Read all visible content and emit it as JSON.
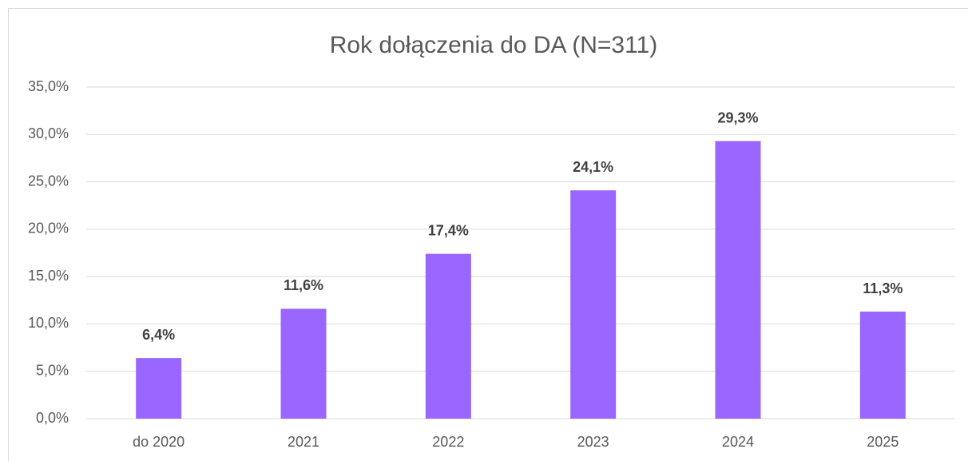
{
  "chart_data": {
    "type": "bar",
    "title": "Rok dołączenia do DA (N=311)",
    "categories": [
      "do 2020",
      "2021",
      "2022",
      "2023",
      "2024",
      "2025"
    ],
    "values": [
      6.4,
      11.6,
      17.4,
      24.1,
      29.3,
      11.3
    ],
    "value_labels": [
      "6,4%",
      "11,6%",
      "17,4%",
      "24,1%",
      "29,3%",
      "11,3%"
    ],
    "color": "#9966ff",
    "ylim": [
      0,
      35
    ],
    "yticks": [
      {
        "value": 0,
        "label": "0,0%"
      },
      {
        "value": 5,
        "label": "5,0%"
      },
      {
        "value": 10,
        "label": "10,0%"
      },
      {
        "value": 15,
        "label": "15,0%"
      },
      {
        "value": 20,
        "label": "20,0%"
      },
      {
        "value": 25,
        "label": "25,0%"
      },
      {
        "value": 30,
        "label": "30,0%"
      },
      {
        "value": 35,
        "label": "35,0%"
      }
    ],
    "grid": true
  }
}
